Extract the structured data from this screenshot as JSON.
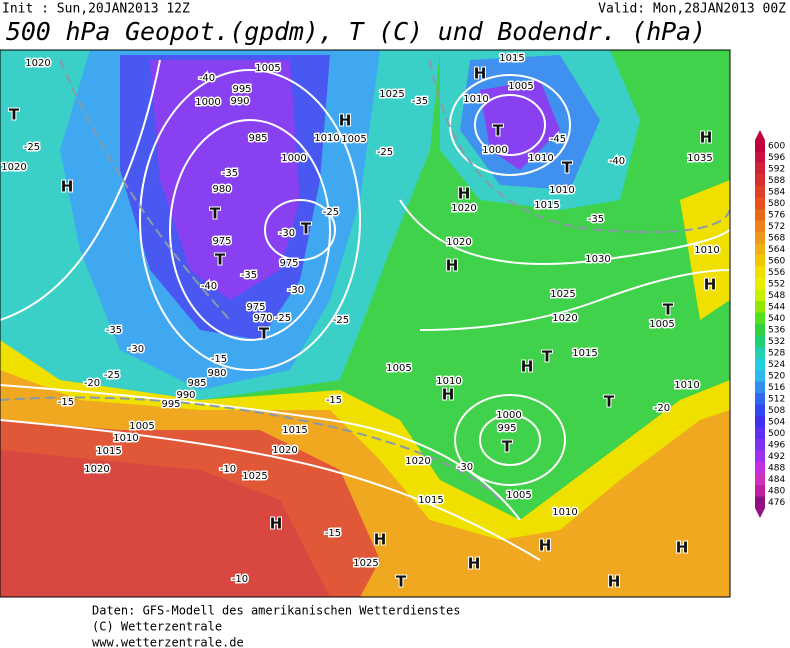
{
  "header": {
    "init": "Init : Sun,20JAN2013 12Z",
    "valid": "Valid: Mon,28JAN2013 00Z",
    "title": "500 hPa Geopot.(gpdm), T (C) und Bodendr. (hPa)"
  },
  "colorbar": {
    "labels": [
      600,
      596,
      592,
      588,
      584,
      580,
      576,
      572,
      568,
      564,
      560,
      556,
      552,
      548,
      544,
      540,
      536,
      532,
      528,
      524,
      520,
      516,
      512,
      508,
      504,
      500,
      496,
      492,
      488,
      484,
      480,
      476
    ],
    "colors": [
      "#c0003a",
      "#c81040",
      "#d0203a",
      "#d83030",
      "#e04028",
      "#e85020",
      "#e86818",
      "#f08018",
      "#f09818",
      "#f0b010",
      "#f0c800",
      "#f0e000",
      "#e8f000",
      "#c8f000",
      "#90e800",
      "#50e020",
      "#30d040",
      "#20d070",
      "#20d0b0",
      "#20d0e0",
      "#30b8f0",
      "#3090f0",
      "#3068f0",
      "#3048f0",
      "#4030f0",
      "#6030f0",
      "#8030f0",
      "#a030f0",
      "#c030e0",
      "#d030c0",
      "#c020a0",
      "#901080"
    ]
  },
  "map_labels": [
    "1020",
    "-40",
    "1005",
    "995",
    "990",
    "1000",
    "H",
    "1015",
    "1010",
    "1005",
    "T",
    "1000",
    "-45",
    "1010",
    "T",
    "1010",
    "1015",
    "-40",
    "H",
    "1035",
    "T",
    "1020",
    "H",
    "985",
    "1010",
    "H",
    "1005",
    "-25",
    "1025",
    "-35",
    "1000",
    "980",
    "T",
    "975",
    "T",
    "-40",
    "975",
    "T",
    "975",
    "970",
    "T",
    "-15",
    "980",
    "985",
    "990",
    "995",
    "1005",
    "1010",
    "1015",
    "1020",
    "1015",
    "1020",
    "1025",
    "-10",
    "H",
    "-15",
    "H",
    "-10",
    "1025",
    "T",
    "H",
    "H",
    "H",
    "H",
    "1015",
    "1020",
    "H",
    "1020",
    "1020",
    "H",
    "1025",
    "1030",
    "-35",
    "1020",
    "T",
    "1015",
    "H",
    "1010",
    "H",
    "1005",
    "1000",
    "995",
    "T",
    "-30",
    "1005",
    "1010",
    "T",
    "1010",
    "-20",
    "T",
    "1005",
    "1010",
    "H",
    "-25",
    "-35",
    "-30",
    "-25",
    "-20",
    "-15",
    "-35",
    "-30",
    "-35",
    "-30",
    "-25",
    "-25",
    "-15",
    "-25"
  ],
  "footer": [
    "Daten: GFS-Modell des amerikanischen Wetterdienstes",
    "(C) Wetterzentrale",
    "www.wetterzentrale.de"
  ]
}
